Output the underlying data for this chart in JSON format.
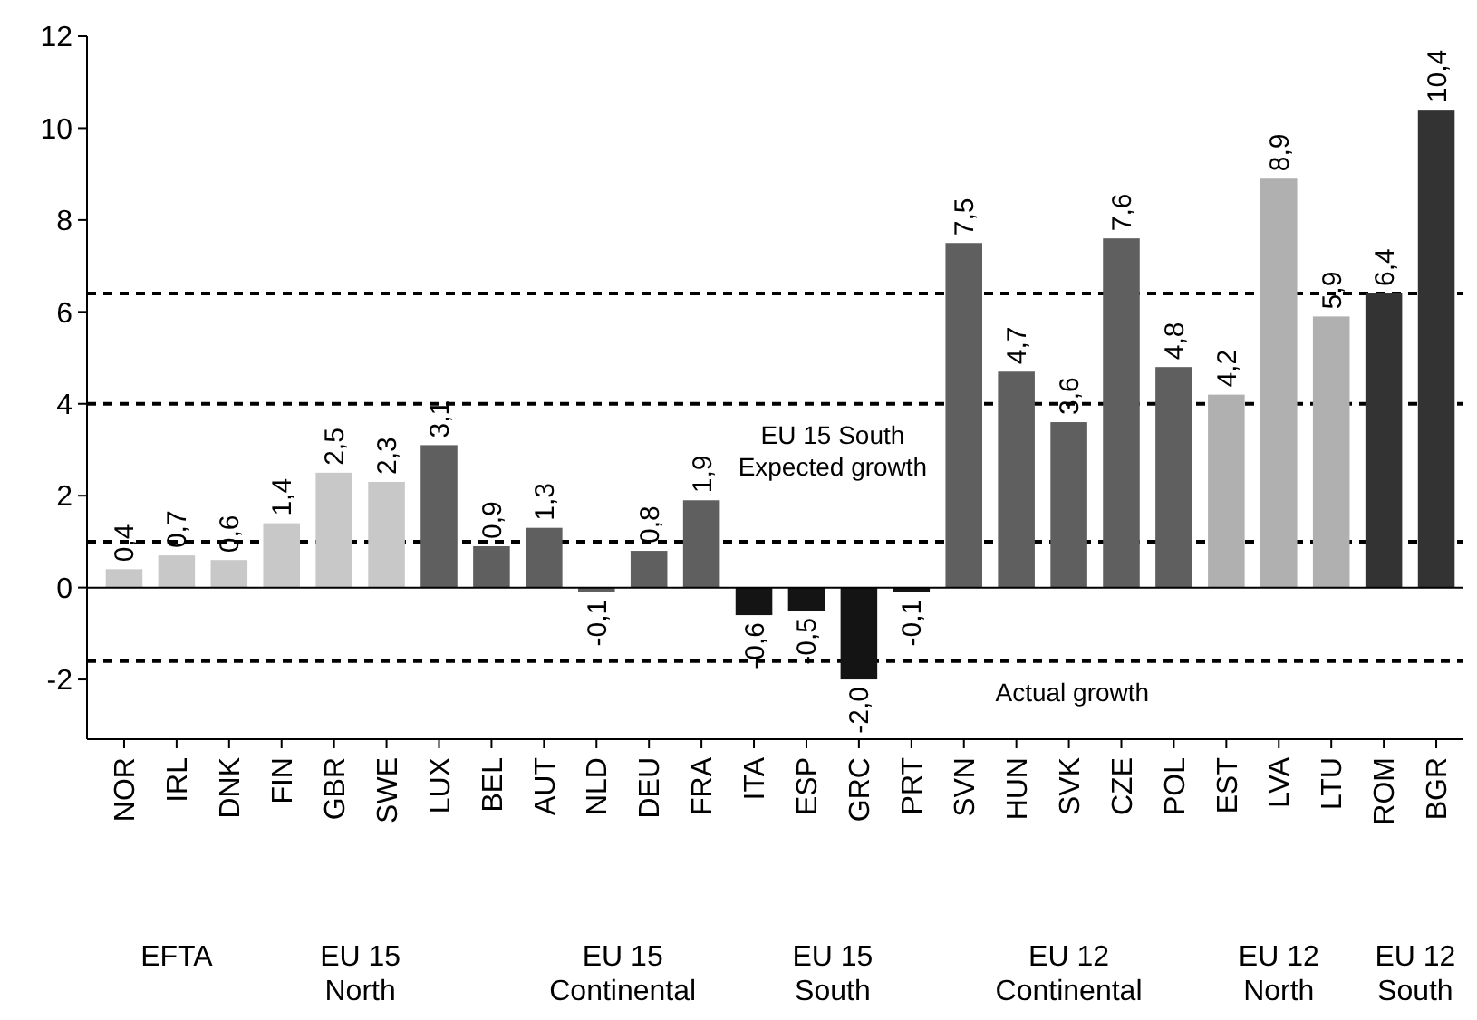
{
  "chart_data": {
    "type": "bar",
    "categories": [
      "NOR",
      "IRL",
      "DNK",
      "FIN",
      "GBR",
      "SWE",
      "LUX",
      "BEL",
      "AUT",
      "NLD",
      "DEU",
      "FRA",
      "ITA",
      "ESP",
      "GRC",
      "PRT",
      "SVN",
      "HUN",
      "SVK",
      "CZE",
      "POL",
      "EST",
      "LVA",
      "LTU",
      "ROM",
      "BGR"
    ],
    "values": [
      0.4,
      0.7,
      0.6,
      1.4,
      2.5,
      2.3,
      3.1,
      0.9,
      1.3,
      -0.1,
      0.8,
      1.9,
      -0.6,
      -0.5,
      -2.0,
      -0.1,
      7.5,
      4.7,
      3.6,
      7.6,
      4.8,
      4.2,
      8.9,
      5.9,
      6.4,
      10.4
    ],
    "value_labels": [
      "0,4",
      "0,7",
      "0,6",
      "1,4",
      "2,5",
      "2,3",
      "3,1",
      "0,9",
      "1,3",
      "-0,1",
      "0,8",
      "1,9",
      "-0,6",
      "-0,5",
      "-2,0",
      "-0,1",
      "7,5",
      "4,7",
      "3,6",
      "7,6",
      "4,8",
      "4,2",
      "8,9",
      "5,9",
      "6,4",
      "10,4"
    ],
    "colors": [
      "#c8c8c8",
      "#c8c8c8",
      "#c8c8c8",
      "#c8c8c8",
      "#c8c8c8",
      "#c8c8c8",
      "#5f5f5f",
      "#5f5f5f",
      "#5f5f5f",
      "#5f5f5f",
      "#5f5f5f",
      "#5f5f5f",
      "#141414",
      "#141414",
      "#141414",
      "#141414",
      "#5f5f5f",
      "#5f5f5f",
      "#5f5f5f",
      "#5f5f5f",
      "#5f5f5f",
      "#b0b0b0",
      "#b0b0b0",
      "#b0b0b0",
      "#333333",
      "#333333"
    ],
    "ylim": [
      -3.3,
      12
    ],
    "yticks": [
      -2,
      0,
      2,
      4,
      6,
      8,
      10,
      12
    ],
    "grid": false,
    "ref_lines": [
      {
        "axis": "y",
        "value": 1.0,
        "line_style": "dashed",
        "color": "#000000"
      },
      {
        "axis": "y",
        "value": 4.0,
        "line_style": "dashed",
        "color": "#000000",
        "label": "EU 15 South\nExpected growth"
      },
      {
        "axis": "y",
        "value": -1.6,
        "line_style": "dashed",
        "color": "#000000",
        "label": "Actual growth"
      },
      {
        "axis": "y",
        "value": 6.4,
        "line_style": "dashed",
        "color": "#000000"
      }
    ],
    "annotations": [
      "EFTA",
      "EU 15\nNorth",
      "EU 15\nContinental",
      "EU 15\nSouth",
      "EU 12\nContinental",
      "EU 12\nNorth",
      "EU 12\nSouth"
    ]
  }
}
